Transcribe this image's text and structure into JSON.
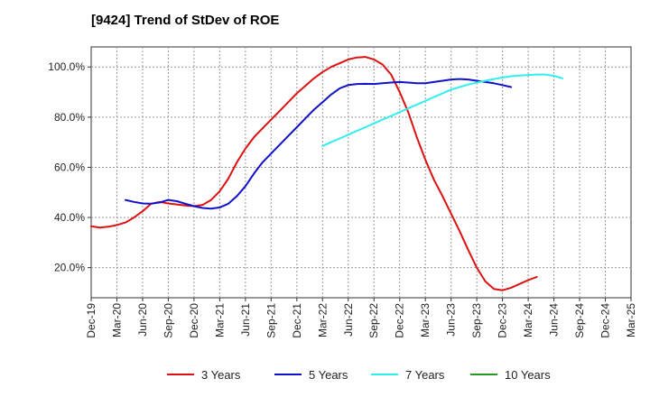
{
  "chart_data": {
    "type": "line",
    "title": "[9424]  Trend of StDev of ROE",
    "xlabel": "",
    "ylabel": "",
    "ylim": [
      8,
      108
    ],
    "yticks": [
      20,
      40,
      60,
      80,
      100
    ],
    "ytick_labels": [
      "20.0%",
      "40.0%",
      "60.0%",
      "80.0%",
      "100.0%"
    ],
    "x_labels": [
      "Dec-19",
      "Mar-20",
      "Jun-20",
      "Sep-20",
      "Dec-20",
      "Mar-21",
      "Jun-21",
      "Sep-21",
      "Dec-21",
      "Mar-22",
      "Jun-22",
      "Sep-22",
      "Dec-22",
      "Mar-23",
      "Jun-23",
      "Sep-23",
      "Dec-23",
      "Mar-24",
      "Jun-24",
      "Sep-24",
      "Dec-24",
      "Mar-25"
    ],
    "grid": true,
    "legend_position": "bottom",
    "series": [
      {
        "name": "3 Years",
        "color": "#dd1111",
        "values": [
          [
            0,
            36.5
          ],
          [
            1,
            36.0
          ],
          [
            2,
            36.3
          ],
          [
            3,
            37.0
          ],
          [
            4,
            38.0
          ],
          [
            5,
            40.0
          ],
          [
            6,
            42.5
          ],
          [
            7,
            45.5
          ],
          [
            8,
            46.2
          ],
          [
            9,
            45.6
          ],
          [
            10,
            45.2
          ],
          [
            11,
            44.8
          ],
          [
            12,
            44.5
          ],
          [
            13,
            45.0
          ],
          [
            14,
            47.0
          ],
          [
            15,
            50.5
          ],
          [
            16,
            55.5
          ],
          [
            17,
            62.0
          ],
          [
            18,
            67.5
          ],
          [
            19,
            72.0
          ],
          [
            20,
            75.5
          ],
          [
            21,
            79.0
          ],
          [
            22,
            82.5
          ],
          [
            23,
            86.0
          ],
          [
            24,
            89.5
          ],
          [
            25,
            92.5
          ],
          [
            26,
            95.5
          ],
          [
            27,
            98.0
          ],
          [
            28,
            100.0
          ],
          [
            29,
            101.5
          ],
          [
            30,
            103.0
          ],
          [
            31,
            103.8
          ],
          [
            32,
            104.0
          ],
          [
            33,
            103.0
          ],
          [
            34,
            101.0
          ],
          [
            35,
            97.0
          ],
          [
            36,
            90.0
          ],
          [
            37,
            82.0
          ],
          [
            38,
            72.0
          ],
          [
            39,
            63.0
          ],
          [
            40,
            55.0
          ],
          [
            41,
            48.5
          ],
          [
            42,
            41.5
          ],
          [
            43,
            34.5
          ],
          [
            44,
            27.0
          ],
          [
            45,
            20.0
          ],
          [
            46,
            14.5
          ],
          [
            47,
            11.5
          ],
          [
            48,
            11.0
          ],
          [
            49,
            12.0
          ],
          [
            50,
            13.5
          ],
          [
            51,
            15.0
          ],
          [
            52,
            16.3
          ]
        ]
      },
      {
        "name": "5 Years",
        "color": "#1111cc",
        "values": [
          [
            4,
            47.0
          ],
          [
            5,
            46.2
          ],
          [
            6,
            45.6
          ],
          [
            7,
            45.5
          ],
          [
            8,
            46.0
          ],
          [
            9,
            47.0
          ],
          [
            10,
            46.5
          ],
          [
            11,
            45.5
          ],
          [
            12,
            44.5
          ],
          [
            13,
            43.8
          ],
          [
            14,
            43.5
          ],
          [
            15,
            44.0
          ],
          [
            16,
            45.5
          ],
          [
            17,
            48.5
          ],
          [
            18,
            52.5
          ],
          [
            19,
            57.5
          ],
          [
            20,
            62.0
          ],
          [
            21,
            65.5
          ],
          [
            22,
            69.0
          ],
          [
            23,
            72.5
          ],
          [
            24,
            76.0
          ],
          [
            25,
            79.5
          ],
          [
            26,
            83.0
          ],
          [
            27,
            86.0
          ],
          [
            28,
            89.0
          ],
          [
            29,
            91.5
          ],
          [
            30,
            92.8
          ],
          [
            31,
            93.2
          ],
          [
            32,
            93.3
          ],
          [
            33,
            93.2
          ],
          [
            34,
            93.5
          ],
          [
            35,
            93.8
          ],
          [
            36,
            94.0
          ],
          [
            37,
            93.8
          ],
          [
            38,
            93.5
          ],
          [
            39,
            93.5
          ],
          [
            40,
            94.0
          ],
          [
            41,
            94.5
          ],
          [
            42,
            95.0
          ],
          [
            43,
            95.2
          ],
          [
            44,
            95.0
          ],
          [
            45,
            94.5
          ],
          [
            46,
            94.0
          ],
          [
            47,
            93.5
          ],
          [
            48,
            92.8
          ],
          [
            49,
            92.0
          ]
        ]
      },
      {
        "name": "7 Years",
        "color": "#33eeee",
        "values": [
          [
            27,
            68.5
          ],
          [
            28,
            70.0
          ],
          [
            29,
            71.5
          ],
          [
            30,
            73.0
          ],
          [
            31,
            74.5
          ],
          [
            32,
            76.0
          ],
          [
            33,
            77.5
          ],
          [
            34,
            79.0
          ],
          [
            35,
            80.5
          ],
          [
            36,
            82.0
          ],
          [
            37,
            83.5
          ],
          [
            38,
            85.0
          ],
          [
            39,
            86.5
          ],
          [
            40,
            88.0
          ],
          [
            41,
            89.5
          ],
          [
            42,
            91.0
          ],
          [
            43,
            92.0
          ],
          [
            44,
            93.0
          ],
          [
            45,
            93.8
          ],
          [
            46,
            94.5
          ],
          [
            47,
            95.2
          ],
          [
            48,
            95.8
          ],
          [
            49,
            96.3
          ],
          [
            50,
            96.6
          ],
          [
            51,
            96.8
          ],
          [
            52,
            97.0
          ],
          [
            53,
            97.0
          ],
          [
            54,
            96.5
          ],
          [
            55,
            95.5
          ]
        ]
      },
      {
        "name": "10 Years",
        "color": "#229922",
        "values": []
      }
    ]
  }
}
